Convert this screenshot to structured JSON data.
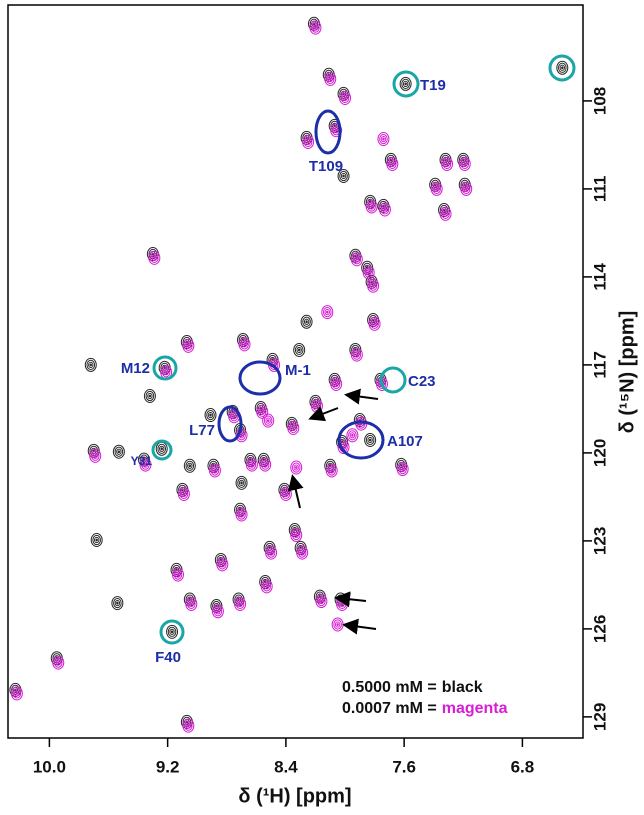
{
  "chart_data": {
    "type": "scatter",
    "xlabel": "δ (¹H) [ppm]",
    "ylabel": "δ (¹⁵N) [ppm]",
    "xlim": [
      10.28,
      6.39
    ],
    "ylim": [
      104.73,
      129.72
    ],
    "xticks": [
      {
        "value": 10,
        "label": "10.0"
      },
      9.2,
      8.4,
      7.6,
      6.8
    ],
    "yticks": [
      108,
      111,
      114,
      117,
      120,
      123,
      126,
      129
    ],
    "annotations": [
      "T19",
      "T109",
      "M12",
      "Y31",
      "C23",
      "M-1",
      "L77",
      "A107",
      "F40"
    ],
    "series": [
      {
        "name": "0.5000 mM =",
        "color_name": "black",
        "color": "#2a2a2a",
        "x": [
          8.21,
          8.11,
          6.53,
          7.59,
          8.01,
          8.07,
          8.26,
          7.69,
          7.32,
          7.2,
          7.39,
          7.19,
          8.01,
          7.83,
          7.74,
          7.33,
          7.93,
          7.85,
          7.82,
          9.3,
          9.07,
          8.69,
          8.26,
          9.22,
          9.72,
          9.36,
          9.53,
          9.7,
          9.68,
          9.95,
          10.23,
          9.17,
          9.14,
          9.05,
          8.87,
          8.72,
          8.54,
          8.17,
          8.03,
          8.3,
          7.9,
          8.07,
          7.93,
          8.31,
          7.83,
          7.62,
          8.1,
          8.89,
          9.05,
          9.1,
          8.55,
          8.41,
          8.91,
          8.57,
          8.76,
          8.71,
          8.64,
          8.84,
          8.51,
          8.71,
          8.34,
          9.54,
          9.07,
          8.2,
          8.02,
          8.36,
          8.7,
          9.32,
          7.81,
          8.49,
          7.76,
          9.24
        ],
        "values": [
          105.37,
          107.11,
          106.87,
          107.42,
          107.76,
          108.85,
          109.26,
          110.01,
          110.01,
          110.01,
          110.86,
          110.86,
          110.56,
          111.44,
          111.58,
          111.72,
          113.28,
          113.69,
          114.17,
          113.22,
          116.22,
          116.15,
          115.53,
          117.1,
          117.0,
          120.23,
          119.96,
          119.93,
          122.97,
          127.0,
          128.08,
          126.1,
          123.99,
          125.0,
          125.22,
          125.0,
          124.4,
          124.9,
          125.0,
          123.24,
          118.88,
          117.51,
          116.49,
          116.49,
          119.56,
          120.41,
          120.44,
          120.44,
          120.44,
          121.26,
          120.24,
          121.26,
          118.71,
          118.47,
          118.6,
          119.22,
          120.24,
          123.65,
          123.24,
          121.94,
          122.63,
          125.12,
          129.17,
          118.26,
          119.63,
          119.01,
          121.02,
          118.06,
          115.47,
          116.83,
          117.51,
          119.86
        ]
      },
      {
        "name": "0.0007 mM =",
        "color_name": "magenta",
        "color": "#d61ed6",
        "x": [
          8.2,
          8.1,
          8.0,
          8.06,
          8.25,
          7.68,
          7.31,
          7.19,
          7.38,
          7.18,
          7.82,
          7.73,
          7.32,
          7.92,
          7.84,
          7.81,
          9.29,
          9.06,
          8.68,
          9.21,
          9.35,
          9.69,
          9.94,
          10.22,
          9.13,
          9.04,
          8.86,
          8.71,
          8.53,
          8.16,
          8.02,
          8.29,
          7.89,
          8.06,
          7.92,
          7.61,
          8.09,
          8.88,
          9.09,
          8.54,
          8.4,
          8.56,
          8.75,
          8.7,
          8.63,
          8.83,
          8.5,
          8.7,
          8.33,
          9.06,
          8.19,
          8.01,
          8.35,
          7.8,
          8.48,
          7.75,
          8.33,
          8.05,
          7.74,
          8.12,
          8.52,
          7.95
        ],
        "values": [
          105.5,
          107.25,
          107.9,
          109.0,
          109.4,
          110.15,
          110.15,
          110.15,
          111.0,
          111.0,
          111.6,
          111.7,
          111.85,
          113.4,
          113.85,
          114.3,
          113.35,
          116.35,
          116.3,
          117.25,
          120.4,
          120.1,
          127.15,
          128.2,
          124.15,
          125.15,
          125.4,
          125.15,
          124.55,
          125.05,
          125.15,
          123.4,
          119.0,
          117.65,
          116.65,
          120.55,
          120.6,
          120.6,
          121.4,
          120.4,
          121.4,
          118.6,
          118.75,
          119.4,
          120.4,
          123.8,
          123.4,
          122.1,
          122.8,
          129.3,
          118.4,
          119.8,
          119.15,
          115.6,
          117.0,
          117.65,
          120.5,
          125.85,
          109.3,
          115.2,
          118.9,
          119.4
        ]
      }
    ]
  }
}
